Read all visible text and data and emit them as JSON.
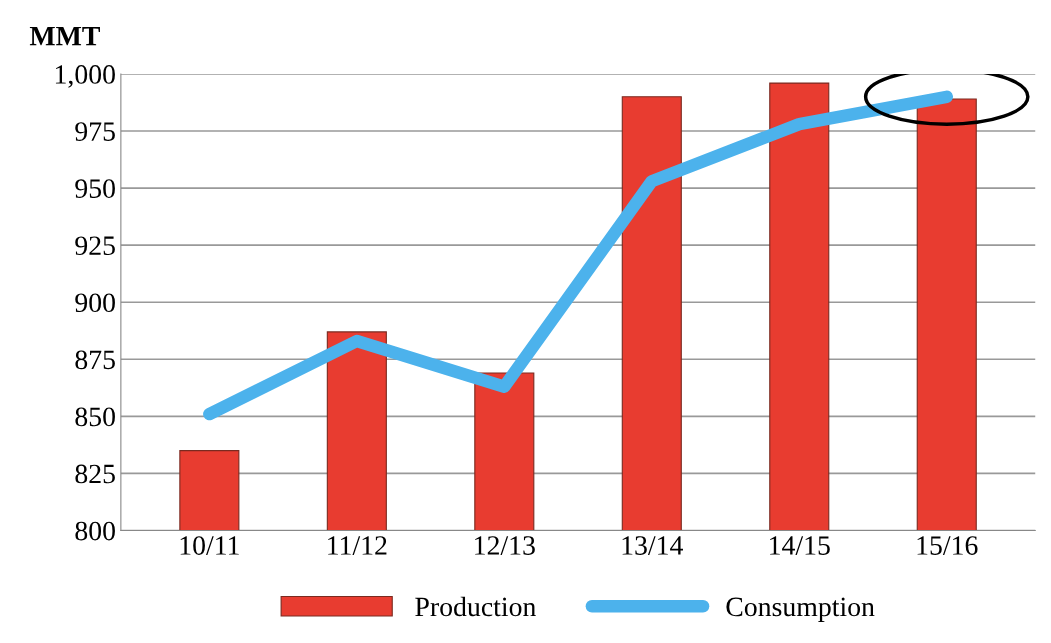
{
  "chart_data": {
    "type": "bar",
    "ylabel": "MMT",
    "categories": [
      "10/11",
      "11/12",
      "12/13",
      "13/14",
      "14/15",
      "15/16"
    ],
    "series": [
      {
        "name": "Production",
        "color": "#e83c30",
        "values": [
          835,
          887,
          869,
          990,
          996,
          989
        ]
      },
      {
        "name": "Consumption",
        "type": "line",
        "color": "#4cb2ec",
        "values": [
          851,
          883,
          863,
          953,
          978,
          990
        ]
      }
    ],
    "ylim": [
      800,
      1000
    ],
    "yticks": [
      800,
      825,
      850,
      875,
      900,
      925,
      950,
      975,
      {
        "value": 1000,
        "label": "1,000"
      }
    ],
    "grid": "y",
    "legend": "bottom",
    "line_style": "solid"
  }
}
